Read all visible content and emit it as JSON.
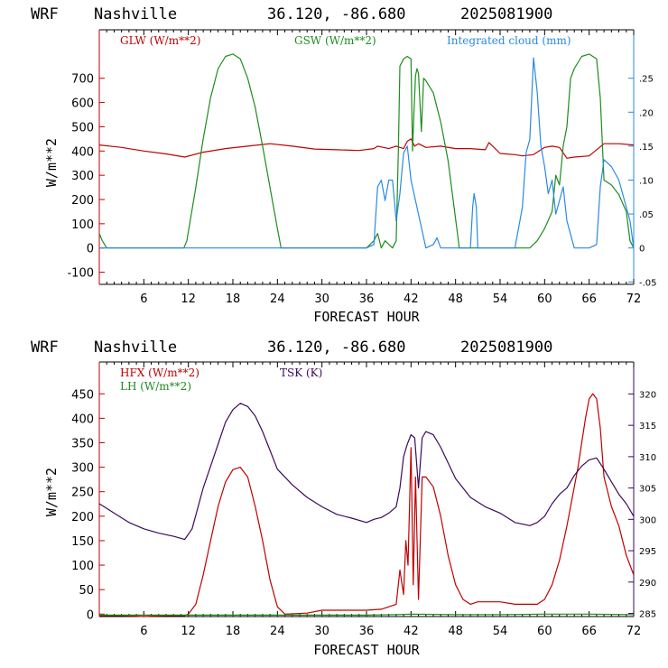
{
  "colors": {
    "red": "#c00000",
    "green": "#1e8c1e",
    "blue": "#2a8ae0",
    "purple": "#3c0a5a",
    "axis_top": "#c00000",
    "axis_top_right": "#2a8ae0",
    "axis_bottom": "#c00000",
    "axis_bottom_right": "#3c0a5a"
  },
  "chart_data": [
    {
      "type": "line",
      "header": {
        "model": "WRF",
        "location": "Nashville",
        "coords": "36.120, -86.680",
        "date": "2025081900"
      },
      "xlabel": "FORECAST HOUR",
      "ylabel": "W/m**2",
      "xlim": [
        0,
        72
      ],
      "ylim": [
        -150,
        900
      ],
      "y2lim": [
        -0.0536,
        0.3214
      ],
      "x_ticks": [
        6,
        12,
        18,
        24,
        30,
        36,
        42,
        48,
        54,
        60,
        66,
        72
      ],
      "y_ticks": [
        -100,
        0,
        100,
        200,
        300,
        400,
        500,
        600,
        700
      ],
      "y2_ticks": [
        {
          "v": -0.05,
          "label": "-.05"
        },
        {
          "v": 0,
          "label": "0"
        },
        {
          "v": 0.05,
          "label": ".05"
        },
        {
          "v": 0.1,
          "label": ".10"
        },
        {
          "v": 0.15,
          "label": ".15"
        },
        {
          "v": 0.2,
          "label": ".20"
        },
        {
          "v": 0.25,
          "label": ".25"
        }
      ],
      "legend": [
        {
          "label": "GLW (W/m**2)",
          "color_key": "red"
        },
        {
          "label": "GSW (W/m**2)",
          "color_key": "green"
        },
        {
          "label": "Integrated cloud (mm)",
          "color_key": "blue"
        }
      ],
      "series": [
        {
          "name": "GLW (W/m**2)",
          "axis": "left",
          "color_key": "red",
          "x": [
            0,
            3,
            6,
            9,
            11.5,
            14,
            17,
            20,
            23,
            26,
            29,
            32,
            35,
            37,
            37.5,
            39,
            40,
            41,
            41.5,
            42,
            42.5,
            43,
            44,
            46,
            48,
            50,
            52,
            52.5,
            54,
            56,
            57,
            58.5,
            60,
            61,
            62,
            63,
            64,
            66,
            68,
            70,
            72
          ],
          "y": [
            425,
            415,
            400,
            388,
            375,
            395,
            410,
            420,
            430,
            420,
            408,
            405,
            402,
            410,
            420,
            410,
            420,
            410,
            440,
            450,
            420,
            430,
            415,
            420,
            410,
            410,
            405,
            435,
            390,
            385,
            380,
            385,
            415,
            420,
            415,
            370,
            375,
            380,
            430,
            430,
            425
          ]
        },
        {
          "name": "GSW (W/m**2)",
          "axis": "left",
          "color_key": "green",
          "x": [
            0,
            0.4,
            1,
            11.4,
            11.8,
            13,
            14,
            15,
            16,
            17,
            18,
            19,
            20,
            21,
            22,
            23,
            24,
            24.5,
            36,
            37,
            37.5,
            38,
            38.5,
            39.5,
            40,
            40.3,
            40.5,
            41,
            41.5,
            42,
            42.2,
            42.4,
            42.6,
            42.8,
            43,
            43.4,
            43.7,
            44,
            45,
            46,
            47,
            48,
            48.5,
            58,
            59,
            60,
            61,
            61.5,
            62,
            62.5,
            63,
            63.5,
            64,
            65,
            66,
            67,
            67.5,
            68,
            69,
            70,
            71,
            71.5,
            72
          ],
          "y": [
            60,
            30,
            0,
            0,
            30,
            250,
            450,
            620,
            740,
            790,
            800,
            780,
            700,
            580,
            420,
            250,
            80,
            0,
            0,
            30,
            60,
            0,
            30,
            0,
            30,
            420,
            750,
            780,
            790,
            780,
            400,
            560,
            710,
            740,
            720,
            480,
            700,
            690,
            640,
            520,
            360,
            120,
            0,
            0,
            30,
            80,
            150,
            300,
            260,
            420,
            500,
            700,
            740,
            790,
            800,
            780,
            620,
            280,
            260,
            220,
            150,
            30,
            0
          ]
        },
        {
          "name": "Integrated cloud (mm)",
          "axis": "right",
          "color_key": "blue",
          "x": [
            0,
            36,
            37,
            37.5,
            38,
            38.5,
            39,
            39.5,
            40,
            40.5,
            41,
            41.5,
            42,
            44,
            45,
            45.5,
            46,
            50,
            50.3,
            50.5,
            50.8,
            51,
            56,
            57,
            57.5,
            58,
            58.5,
            59,
            59.5,
            60,
            60.5,
            61,
            61.5,
            62,
            62.5,
            63,
            63.5,
            64,
            65,
            66,
            67,
            67.5,
            68,
            69,
            70,
            71,
            71.5,
            72
          ],
          "y": [
            0,
            0,
            0.005,
            0.09,
            0.1,
            0.07,
            0.1,
            0.1,
            0.04,
            0.08,
            0.14,
            0.15,
            0.1,
            0,
            0.005,
            0.015,
            0,
            0,
            0.06,
            0.08,
            0.06,
            0,
            0,
            0.06,
            0.14,
            0.16,
            0.28,
            0.23,
            0.15,
            0.12,
            0.08,
            0.1,
            0.05,
            0.07,
            0.09,
            0.04,
            0.02,
            0,
            0,
            0,
            0.005,
            0.09,
            0.13,
            0.12,
            0.1,
            0.06,
            0.04,
            0
          ]
        }
      ]
    },
    {
      "type": "line",
      "header": {
        "model": "WRF",
        "location": "Nashville",
        "coords": "36.120, -86.680",
        "date": "2025081900"
      },
      "xlabel": "FORECAST HOUR",
      "ylabel": "W/m**2",
      "xlim": [
        0,
        72
      ],
      "ylim": [
        -5,
        515
      ],
      "y2lim": [
        284.5,
        325.1
      ],
      "x_ticks": [
        6,
        12,
        18,
        24,
        30,
        36,
        42,
        48,
        54,
        60,
        66,
        72
      ],
      "y_ticks": [
        0,
        50,
        100,
        150,
        200,
        250,
        300,
        350,
        400,
        450
      ],
      "y2_ticks": [
        {
          "v": 285,
          "label": "285"
        },
        {
          "v": 290,
          "label": "290"
        },
        {
          "v": 295,
          "label": "295"
        },
        {
          "v": 300,
          "label": "300"
        },
        {
          "v": 305,
          "label": "305"
        },
        {
          "v": 310,
          "label": "310"
        },
        {
          "v": 315,
          "label": "315"
        },
        {
          "v": 320,
          "label": "320"
        }
      ],
      "legend": [
        {
          "label": "HFX (W/m**2)",
          "color_key": "red"
        },
        {
          "label": "LH  (W/m**2)",
          "color_key": "green"
        },
        {
          "label": "TSK (K)",
          "color_key": "purple"
        }
      ],
      "series": [
        {
          "name": "HFX (W/m**2)",
          "axis": "left",
          "color_key": "red",
          "x": [
            0,
            3,
            6,
            9,
            11.5,
            12,
            13,
            14,
            15,
            16,
            17,
            18,
            19,
            20,
            21,
            22,
            23,
            24,
            25,
            28,
            30,
            33,
            36,
            38,
            39,
            40,
            40.5,
            41,
            41.3,
            41.6,
            42,
            42.3,
            42.6,
            43,
            43.5,
            44,
            45,
            46,
            47,
            48,
            49,
            50,
            51,
            54,
            56,
            58,
            59,
            60,
            61,
            62,
            63,
            64,
            64.5,
            65,
            65.5,
            66,
            66.5,
            67,
            67.5,
            68,
            69,
            70,
            71,
            72
          ],
          "y": [
            -3,
            -3,
            -5,
            -3,
            -3,
            0,
            20,
            80,
            150,
            220,
            270,
            295,
            300,
            280,
            220,
            150,
            70,
            15,
            0,
            2,
            8,
            8,
            8,
            10,
            15,
            20,
            90,
            40,
            150,
            100,
            340,
            60,
            280,
            30,
            280,
            280,
            260,
            200,
            120,
            60,
            30,
            20,
            25,
            25,
            20,
            20,
            20,
            30,
            60,
            110,
            180,
            260,
            300,
            350,
            400,
            440,
            450,
            440,
            380,
            280,
            220,
            180,
            120,
            80
          ]
        },
        {
          "name": "LH  (W/m**2)",
          "axis": "left",
          "color_key": "green",
          "x": [
            0,
            12,
            18,
            24,
            30,
            36,
            40,
            42,
            48,
            54,
            60,
            66,
            72
          ],
          "y": [
            -2,
            -2,
            -2,
            -2,
            -2,
            -2,
            -1,
            0,
            -1,
            -1,
            0,
            0,
            -1
          ]
        },
        {
          "name": "TSK (K)",
          "axis": "right",
          "color_key": "purple",
          "x": [
            0,
            2,
            4,
            6,
            8,
            10,
            11.5,
            12.5,
            14,
            16,
            17,
            18,
            19,
            20,
            21,
            22,
            23,
            24,
            26,
            28,
            30,
            32,
            34,
            36,
            37,
            38,
            39,
            40,
            40.5,
            41,
            41.5,
            42,
            42.5,
            43,
            43.5,
            44,
            45,
            46,
            47,
            48,
            50,
            52,
            54,
            56,
            58,
            59,
            60,
            61,
            62,
            63,
            64,
            65,
            66,
            67,
            68,
            69,
            70,
            71,
            72
          ],
          "y": [
            302.5,
            301,
            299.5,
            298.5,
            297.8,
            297.3,
            296.8,
            298.5,
            305,
            312,
            315.5,
            317.5,
            318.5,
            318,
            316.5,
            314,
            311,
            308,
            305.5,
            303.5,
            302,
            300.8,
            300.2,
            299.5,
            300,
            300.3,
            301,
            302,
            305,
            310,
            312,
            313.5,
            313,
            305,
            313,
            314,
            313.5,
            311.5,
            309,
            306.5,
            303.5,
            302,
            301,
            299.5,
            299,
            299.5,
            300.5,
            302.5,
            304,
            305,
            307,
            308.5,
            309.5,
            309.8,
            308,
            306,
            304,
            302.5,
            300.5
          ]
        }
      ]
    }
  ]
}
